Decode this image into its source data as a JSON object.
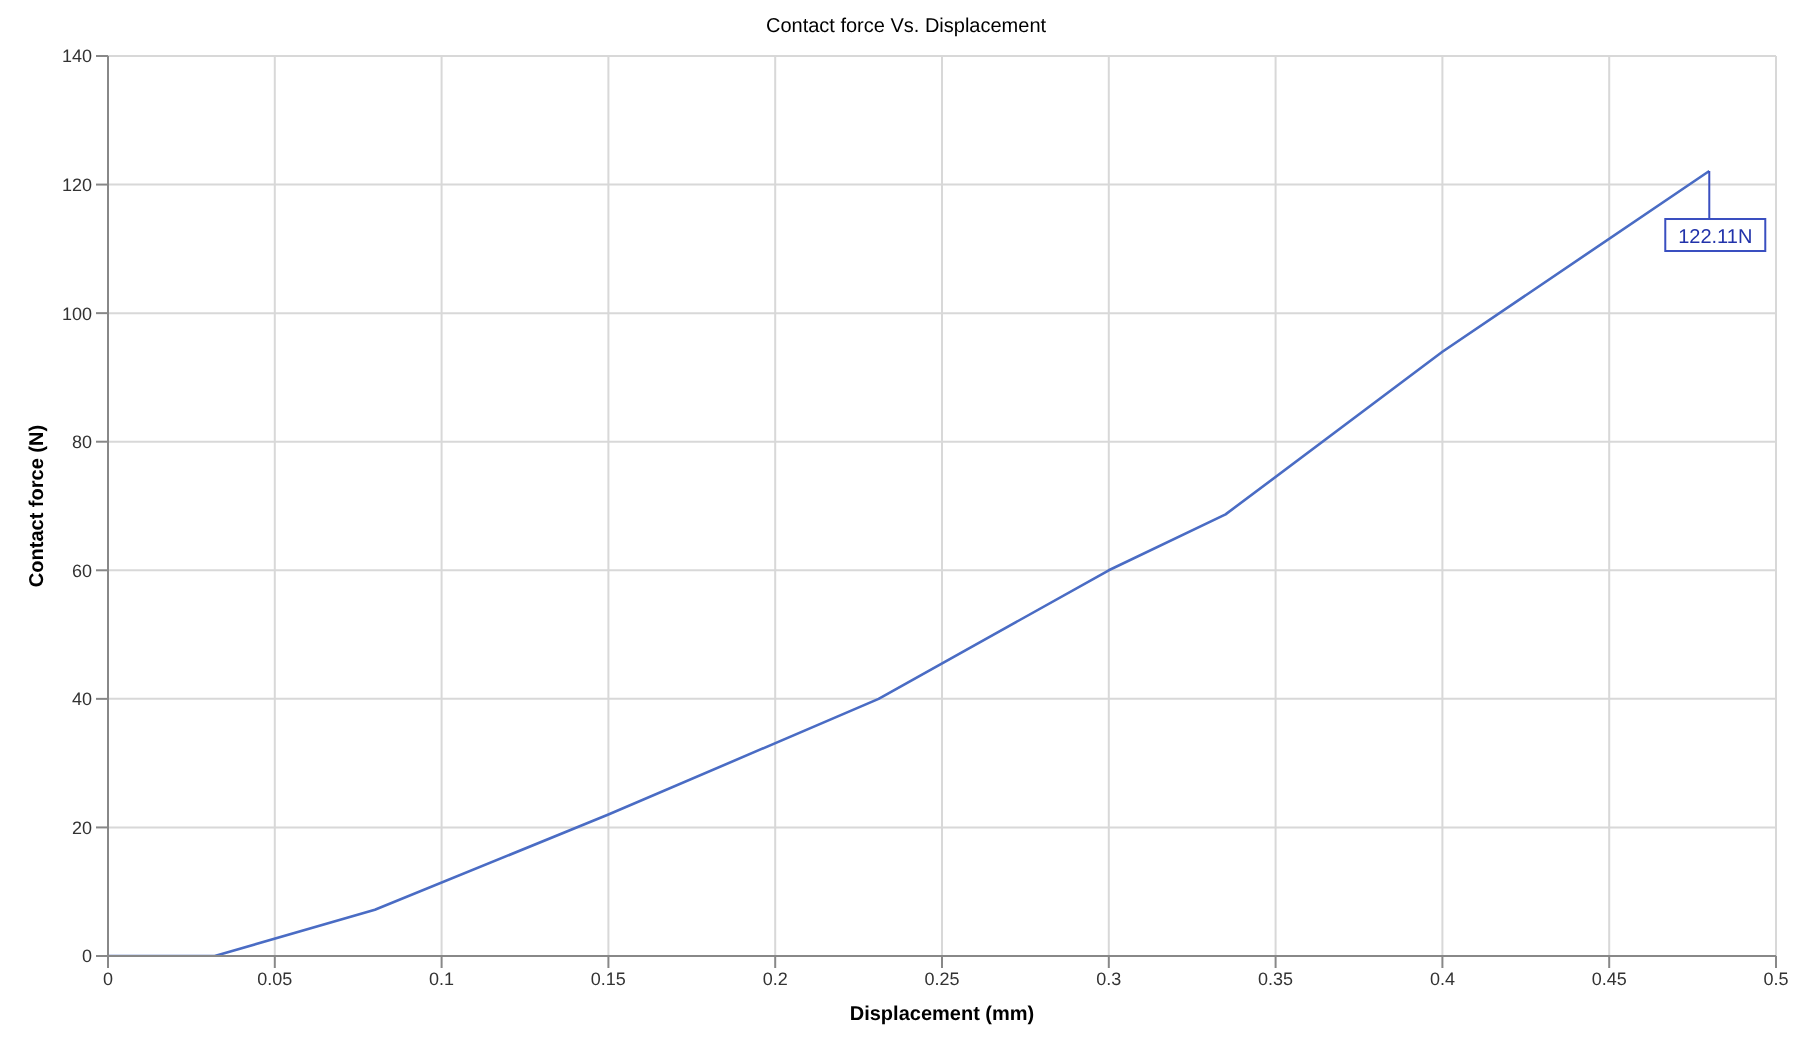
{
  "chart_data": {
    "type": "line",
    "title": "Contact force Vs. Displacement",
    "xlabel": "Displacement (mm)",
    "ylabel": "Contact force (N)",
    "series": [
      {
        "color": "#4a6cc4",
        "x": [
          0,
          0.032,
          0.08,
          0.15,
          0.231,
          0.3,
          0.335,
          0.4,
          0.48
        ],
        "values": [
          0,
          0,
          7.2,
          22,
          40,
          60,
          68.7,
          94,
          122.11
        ]
      }
    ],
    "xlim": [
      0,
      0.5
    ],
    "xticks": [
      0,
      0.05,
      0.1,
      0.15,
      0.2,
      0.25,
      0.3,
      0.35,
      0.4,
      0.45,
      0.5
    ],
    "ylim": [
      0,
      140
    ],
    "yticks": [
      0,
      20,
      40,
      60,
      80,
      100,
      120,
      140
    ],
    "grid": true,
    "legend": false,
    "marker": "none",
    "line_style": "solid",
    "annotations": [
      {
        "text": "122.11N",
        "x": 0.48,
        "y": 122.11
      }
    ]
  }
}
